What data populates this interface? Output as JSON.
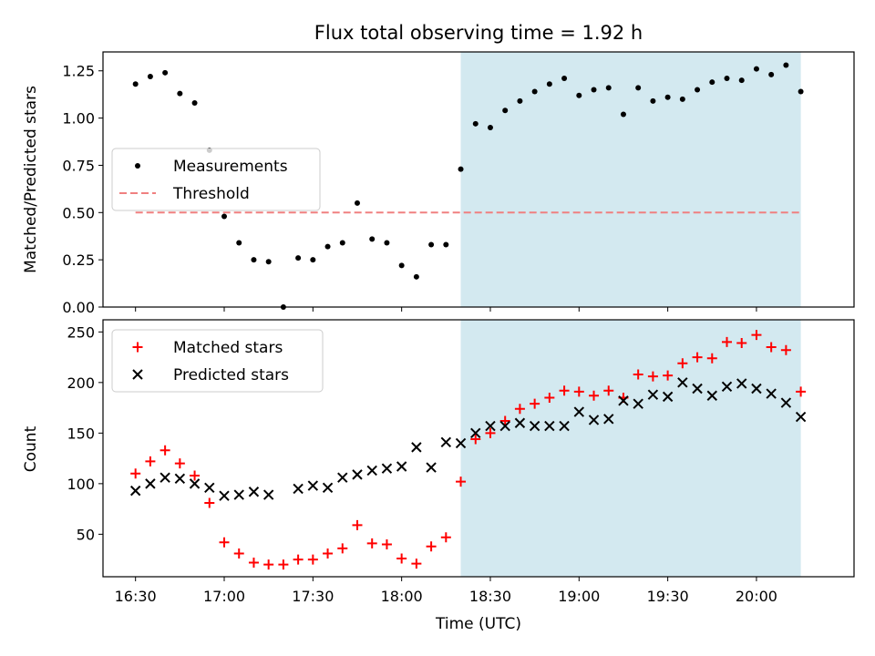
{
  "chart_data": [
    {
      "type": "scatter",
      "title": "Flux total observing time = 1.92 h",
      "ylabel": "Matched/Predicted stars",
      "ylim": [
        0,
        1.35
      ],
      "yticks": [
        "0.00",
        "0.25",
        "0.50",
        "0.75",
        "1.00",
        "1.25"
      ],
      "shaded_interval": [
        "18:20",
        "20:15"
      ],
      "shade_color": "#d3e9f0",
      "legend_position": "center-left",
      "series": [
        {
          "name": "Measurements",
          "marker": "dot",
          "color": "#000000",
          "x": [
            "16:30",
            "16:35",
            "16:40",
            "16:45",
            "16:50",
            "16:55",
            "17:00",
            "17:05",
            "17:10",
            "17:15",
            "17:20",
            "17:25",
            "17:30",
            "17:35",
            "17:40",
            "17:45",
            "17:50",
            "17:55",
            "18:00",
            "18:05",
            "18:10",
            "18:15",
            "18:20",
            "18:25",
            "18:30",
            "18:35",
            "18:40",
            "18:45",
            "18:50",
            "18:55",
            "19:00",
            "19:05",
            "19:10",
            "19:15",
            "19:20",
            "19:25",
            "19:30",
            "19:35",
            "19:40",
            "19:45",
            "19:50",
            "19:55",
            "20:00",
            "20:05",
            "20:10",
            "20:15"
          ],
          "values": [
            1.18,
            1.22,
            1.24,
            1.13,
            1.08,
            0.83,
            0.48,
            0.34,
            0.25,
            0.24,
            0.0,
            0.26,
            0.25,
            0.32,
            0.34,
            0.55,
            0.36,
            0.34,
            0.22,
            0.16,
            0.33,
            0.33,
            0.73,
            0.97,
            0.95,
            1.04,
            1.09,
            1.14,
            1.18,
            1.21,
            1.12,
            1.15,
            1.16,
            1.02,
            1.16,
            1.09,
            1.11,
            1.1,
            1.15,
            1.19,
            1.21,
            1.2,
            1.26,
            1.23,
            1.28,
            1.14
          ]
        },
        {
          "name": "Threshold",
          "line_style": "dashed",
          "color": "#f08080",
          "x": [
            "16:30",
            "20:15"
          ],
          "values": [
            0.5,
            0.5
          ]
        }
      ]
    },
    {
      "type": "scatter",
      "xlabel": "Time (UTC)",
      "ylabel": "Count",
      "ylim": [
        8,
        262
      ],
      "yticks": [
        "50",
        "100",
        "150",
        "200",
        "250"
      ],
      "xticks": [
        "16:30",
        "17:00",
        "17:30",
        "18:00",
        "18:30",
        "19:00",
        "19:30",
        "20:00"
      ],
      "xlim": [
        "16:19",
        "20:33"
      ],
      "legend_position": "top-left",
      "series": [
        {
          "name": "Matched stars",
          "marker": "plus",
          "color": "#ff0000",
          "x": [
            "16:30",
            "16:35",
            "16:40",
            "16:45",
            "16:50",
            "16:55",
            "17:00",
            "17:05",
            "17:10",
            "17:15",
            "17:20",
            "17:25",
            "17:30",
            "17:35",
            "17:40",
            "17:45",
            "17:50",
            "17:55",
            "18:00",
            "18:05",
            "18:10",
            "18:15",
            "18:20",
            "18:25",
            "18:30",
            "18:35",
            "18:40",
            "18:45",
            "18:50",
            "18:55",
            "19:00",
            "19:05",
            "19:10",
            "19:15",
            "19:20",
            "19:25",
            "19:30",
            "19:35",
            "19:40",
            "19:45",
            "19:50",
            "19:55",
            "20:00",
            "20:05",
            "20:10",
            "20:15"
          ],
          "values": [
            110,
            122,
            133,
            120,
            108,
            81,
            42,
            31,
            22,
            20,
            20,
            25,
            25,
            31,
            36,
            59,
            41,
            40,
            26,
            21,
            38,
            47,
            102,
            144,
            150,
            162,
            174,
            179,
            185,
            192,
            191,
            187,
            192,
            185,
            208,
            206,
            207,
            219,
            225,
            224,
            240,
            239,
            247,
            235,
            232,
            191
          ]
        },
        {
          "name": "Predicted stars",
          "marker": "x",
          "color": "#000000",
          "x": [
            "16:30",
            "16:35",
            "16:40",
            "16:45",
            "16:50",
            "16:55",
            "17:00",
            "17:05",
            "17:10",
            "17:15",
            "17:25",
            "17:30",
            "17:35",
            "17:40",
            "17:45",
            "17:50",
            "17:55",
            "18:00",
            "18:05",
            "18:10",
            "18:15",
            "18:20",
            "18:25",
            "18:30",
            "18:35",
            "18:40",
            "18:45",
            "18:50",
            "18:55",
            "19:00",
            "19:05",
            "19:10",
            "19:15",
            "19:20",
            "19:25",
            "19:30",
            "19:35",
            "19:40",
            "19:45",
            "19:50",
            "19:55",
            "20:00",
            "20:05",
            "20:10",
            "20:15"
          ],
          "values": [
            93,
            100,
            106,
            105,
            100,
            96,
            88,
            89,
            92,
            89,
            95,
            98,
            96,
            106,
            109,
            113,
            115,
            117,
            136,
            116,
            141,
            140,
            150,
            157,
            157,
            160,
            157,
            157,
            157,
            171,
            163,
            164,
            182,
            179,
            188,
            186,
            200,
            194,
            187,
            196,
            199,
            194,
            189,
            180,
            166
          ]
        }
      ]
    }
  ]
}
